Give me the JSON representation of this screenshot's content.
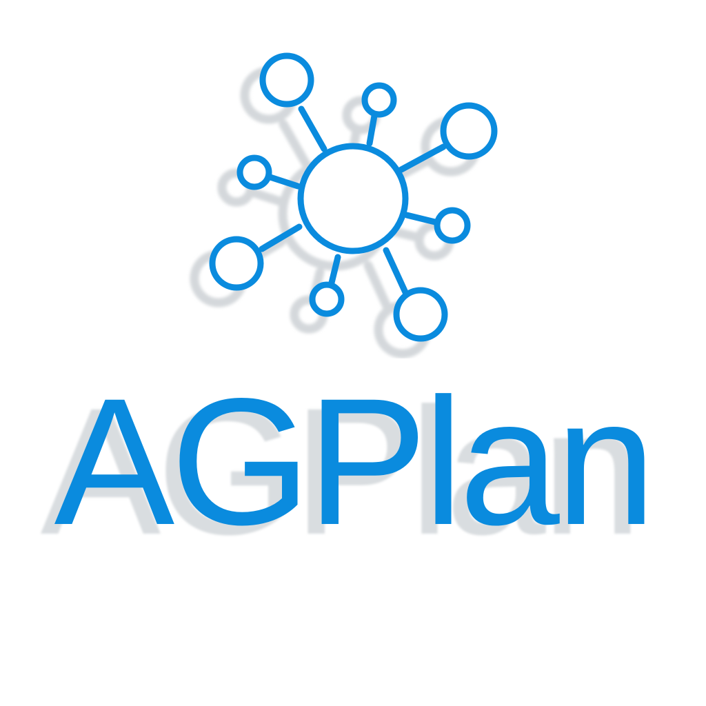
{
  "brand": {
    "name": "AGPlan",
    "icon": "network-hub-icon",
    "color": "#0a8bde",
    "shadow_color": "#d9dde0",
    "background": "#ffffff"
  }
}
